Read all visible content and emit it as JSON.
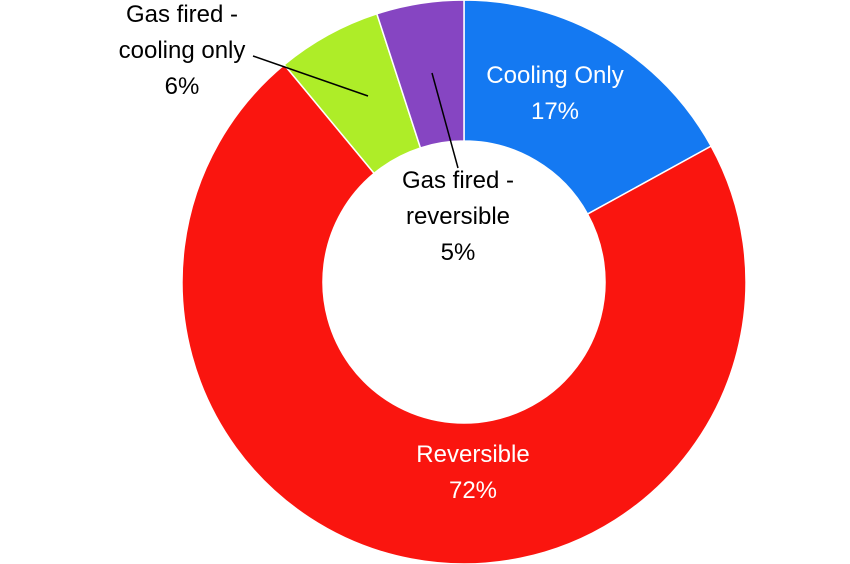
{
  "chart_data": {
    "type": "pie",
    "style": "donut",
    "categories": [
      "Cooling Only",
      "Reversible",
      "Gas fired - cooling only",
      "Gas fired - reversible"
    ],
    "values": [
      17,
      72,
      6,
      5
    ],
    "unit": "%",
    "labels": [
      {
        "lines": [
          "Cooling Only",
          "17%"
        ],
        "color": "#ffffff"
      },
      {
        "lines": [
          "Reversible",
          "72%"
        ],
        "color": "#ffffff"
      },
      {
        "lines": [
          "Gas fired -",
          "cooling only",
          "6%"
        ],
        "color": "#000000"
      },
      {
        "lines": [
          "Gas fired -",
          "reversible",
          "5%"
        ],
        "color": "#000000"
      }
    ],
    "colors": [
      "#1479f2",
      "#fa150f",
      "#aeed28",
      "#8645c2"
    ],
    "start_angle": "top (12 o'clock)",
    "direction": "clockwise",
    "legend": "none",
    "title": ""
  }
}
